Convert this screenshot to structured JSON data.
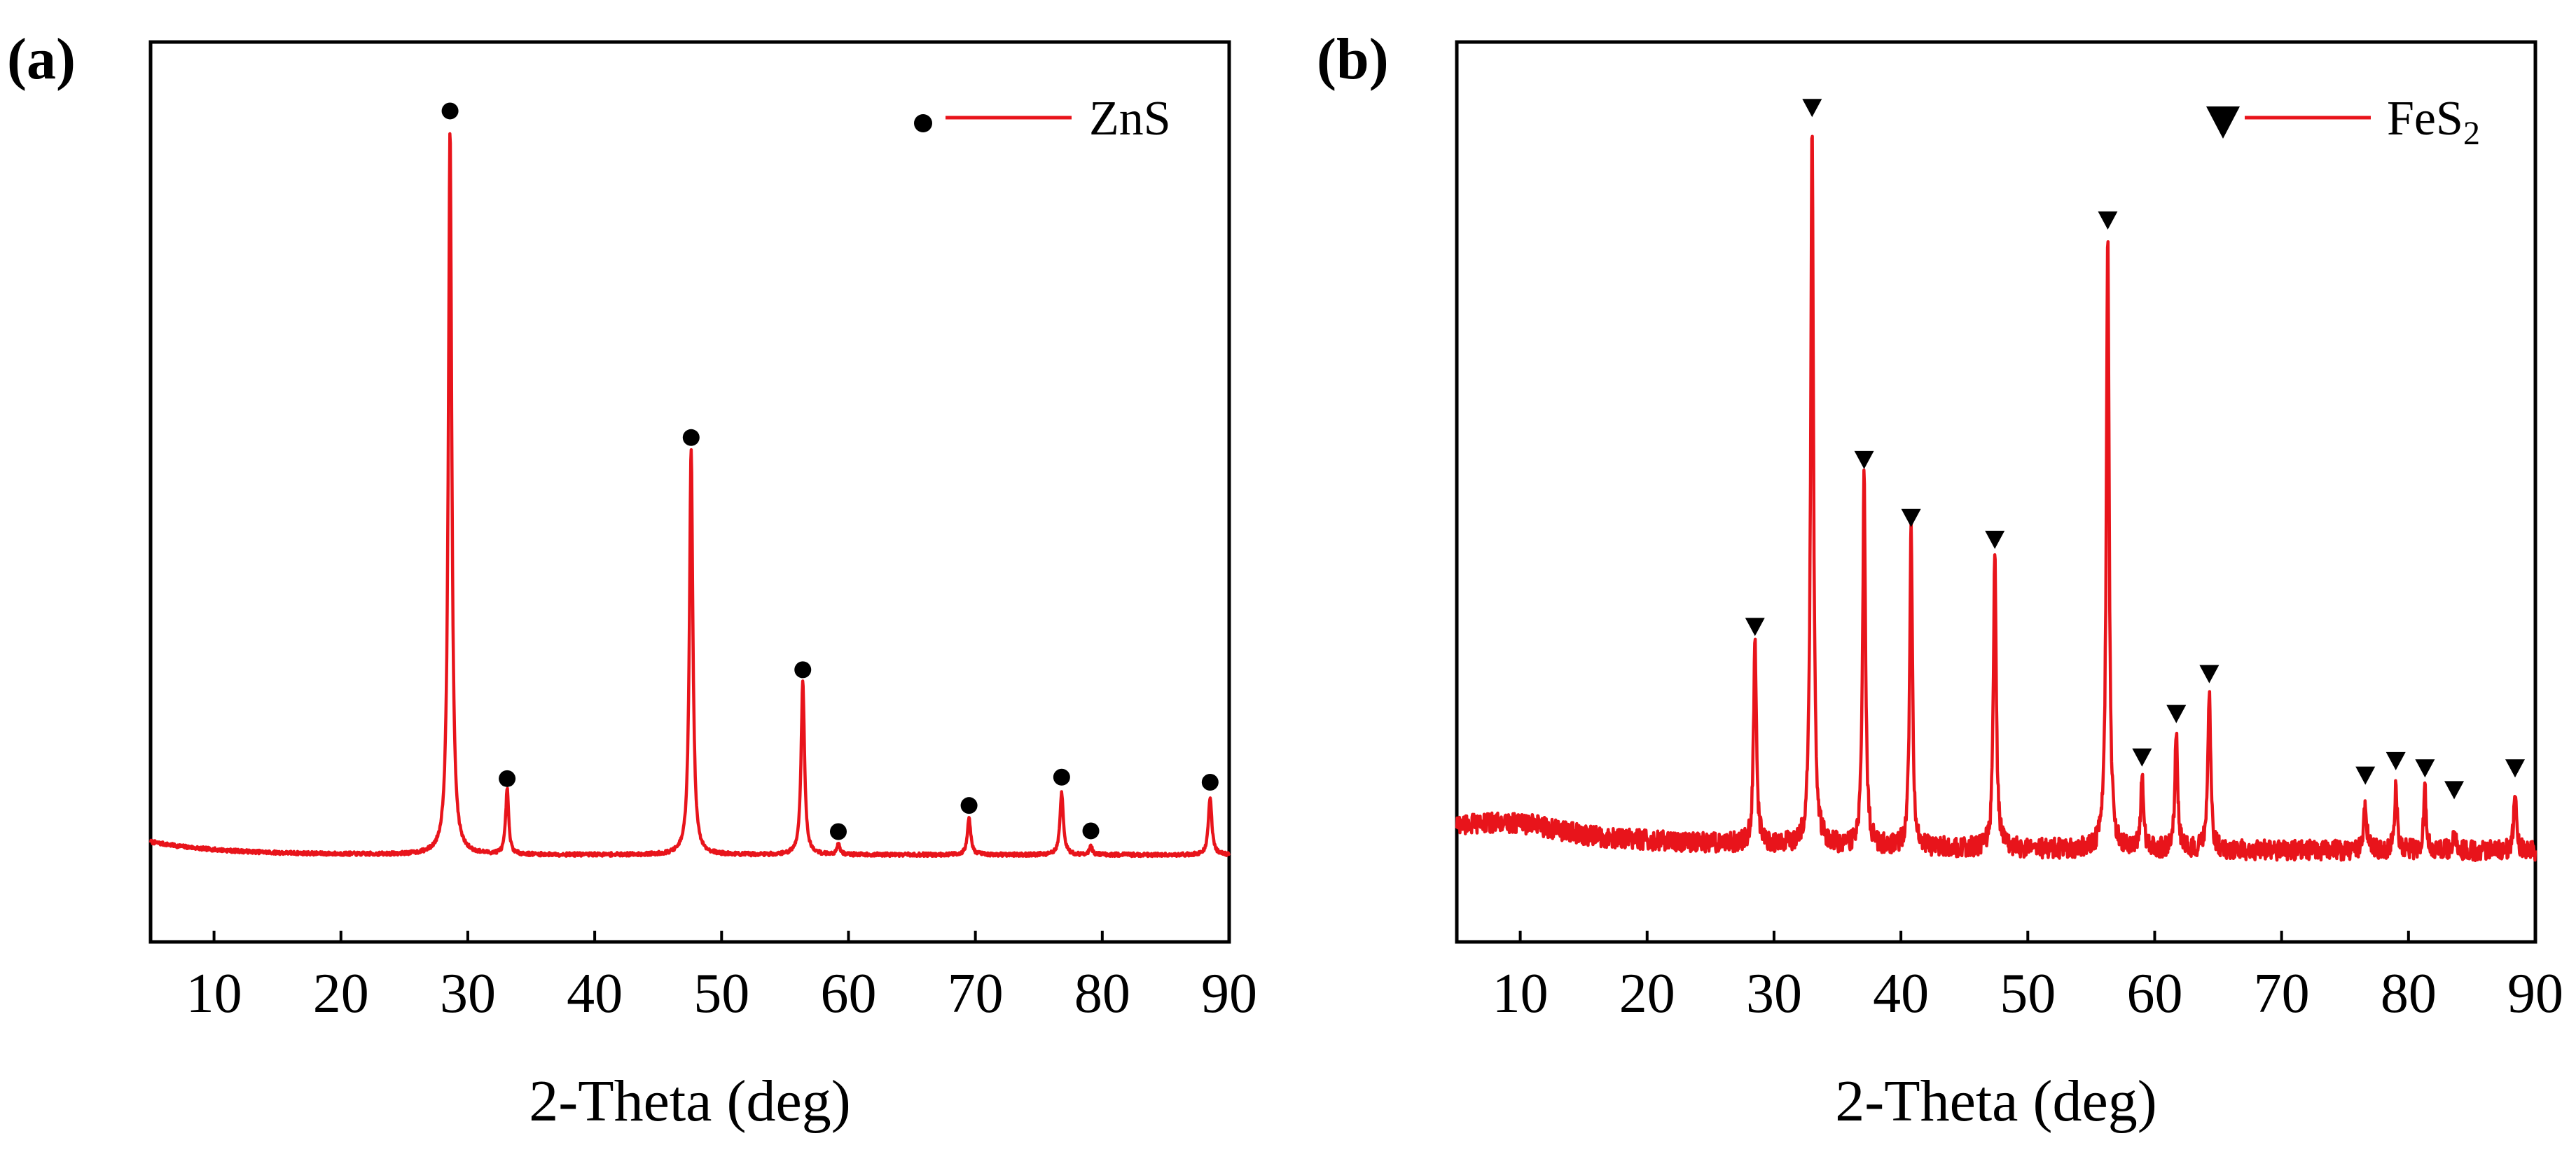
{
  "colors": {
    "trace": "#e8141b",
    "axis": "#000000",
    "marker": "#000000",
    "background": "#ffffff"
  },
  "chart_data": [
    {
      "panel_label": "(a)",
      "type": "line",
      "title": "",
      "xlabel": "2-Theta (deg)",
      "ylabel": "",
      "xlim": [
        5,
        90
      ],
      "ylim": [
        -12,
        112
      ],
      "xticks": [
        "10",
        "20",
        "30",
        "40",
        "50",
        "60",
        "70",
        "80",
        "90"
      ],
      "grid": false,
      "legend": {
        "position": "top-right",
        "marker": "circle",
        "label": "ZnS",
        "subscript": ""
      },
      "baseline": {
        "start": 1.8,
        "end": 0.0,
        "decay": 5.5,
        "noise": 0.25
      },
      "series": [
        {
          "name": "ZnS",
          "peaks": [
            {
              "x": 28.6,
              "height": 100,
              "width": 0.16
            },
            {
              "x": 33.1,
              "height": 9,
              "width": 0.14
            },
            {
              "x": 47.6,
              "height": 56,
              "width": 0.16
            },
            {
              "x": 56.4,
              "height": 24,
              "width": 0.16
            },
            {
              "x": 59.2,
              "height": 1.5,
              "width": 0.14
            },
            {
              "x": 69.5,
              "height": 5,
              "width": 0.16
            },
            {
              "x": 76.8,
              "height": 8.5,
              "width": 0.16
            },
            {
              "x": 79.1,
              "height": 1.2,
              "width": 0.14
            },
            {
              "x": 88.5,
              "height": 8,
              "width": 0.16
            }
          ]
        }
      ],
      "markers": [
        {
          "x": 28.6,
          "y": 102.5
        },
        {
          "x": 33.1,
          "y": 10.5
        },
        {
          "x": 47.6,
          "y": 57.5
        },
        {
          "x": 56.4,
          "y": 25.5
        },
        {
          "x": 59.2,
          "y": 3.2
        },
        {
          "x": 69.5,
          "y": 6.8
        },
        {
          "x": 76.8,
          "y": 10.7
        },
        {
          "x": 79.1,
          "y": 3.3
        },
        {
          "x": 88.5,
          "y": 10.0
        }
      ]
    },
    {
      "panel_label": "(b)",
      "type": "line",
      "title": "",
      "xlabel": "2-Theta (deg)",
      "ylabel": "",
      "xlim": [
        5,
        90
      ],
      "ylim": [
        -12,
        112
      ],
      "xticks": [
        "10",
        "20",
        "30",
        "40",
        "50",
        "60",
        "70",
        "80",
        "90"
      ],
      "grid": false,
      "legend": {
        "position": "top-right",
        "marker": "triangle-down",
        "label": "FeS",
        "subscript": "2"
      },
      "baseline": {
        "start": 4.0,
        "end": 0.5,
        "decay": 18,
        "noise": 1.4
      },
      "series": [
        {
          "name": "FeS2",
          "peaks": [
            {
              "x": 28.5,
              "height": 29,
              "width": 0.13
            },
            {
              "x": 33.0,
              "height": 100,
              "width": 0.13
            },
            {
              "x": 37.1,
              "height": 52,
              "width": 0.13
            },
            {
              "x": 40.8,
              "height": 44,
              "width": 0.13
            },
            {
              "x": 47.4,
              "height": 41,
              "width": 0.13
            },
            {
              "x": 56.3,
              "height": 85,
              "width": 0.13
            },
            {
              "x": 59.0,
              "height": 10,
              "width": 0.13
            },
            {
              "x": 61.7,
              "height": 16,
              "width": 0.13
            },
            {
              "x": 64.3,
              "height": 22,
              "width": 0.13
            },
            {
              "x": 76.6,
              "height": 7,
              "width": 0.13
            },
            {
              "x": 79.0,
              "height": 9,
              "width": 0.13
            },
            {
              "x": 81.3,
              "height": 8,
              "width": 0.13
            },
            {
              "x": 83.6,
              "height": 3,
              "width": 0.13
            },
            {
              "x": 88.4,
              "height": 8,
              "width": 0.13
            }
          ]
        }
      ],
      "markers": [
        {
          "x": 28.5,
          "y": 31.5
        },
        {
          "x": 33.0,
          "y": 103
        },
        {
          "x": 37.1,
          "y": 54.5
        },
        {
          "x": 40.8,
          "y": 46.5
        },
        {
          "x": 47.4,
          "y": 43.5
        },
        {
          "x": 56.3,
          "y": 87.5
        },
        {
          "x": 59.0,
          "y": 13.5
        },
        {
          "x": 61.7,
          "y": 19.5
        },
        {
          "x": 64.3,
          "y": 25.0
        },
        {
          "x": 76.6,
          "y": 11.0
        },
        {
          "x": 79.0,
          "y": 13.0
        },
        {
          "x": 81.3,
          "y": 12.0
        },
        {
          "x": 83.6,
          "y": 9.0
        },
        {
          "x": 88.4,
          "y": 12.0
        }
      ]
    }
  ]
}
